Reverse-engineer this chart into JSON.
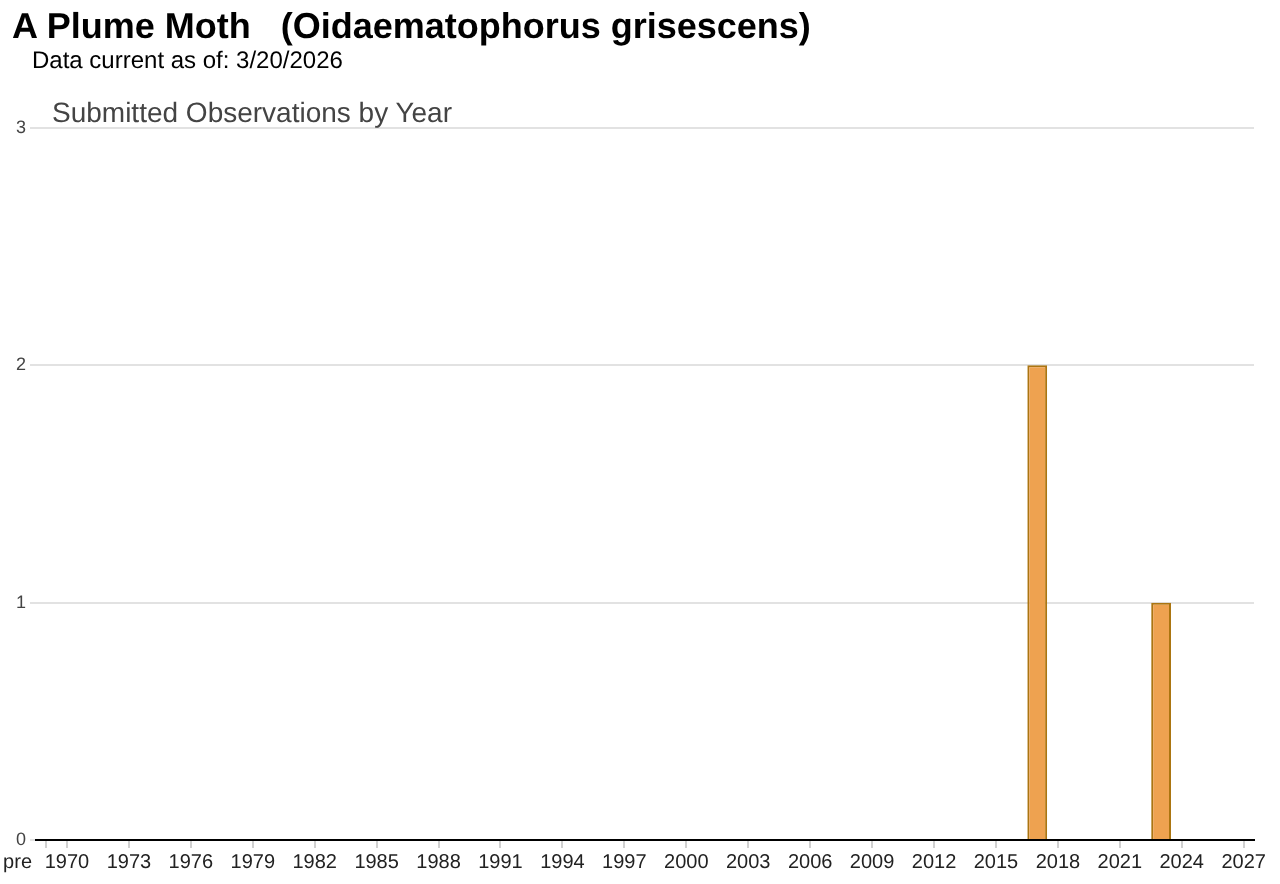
{
  "chart_data": {
    "type": "bar",
    "title": "A Plume Moth   (Oidaematophorus grisescens)",
    "subtitle": "Submitted Observations by Year",
    "annotations": [
      "Data current as of: 3/20/2026"
    ],
    "categories": [
      "pre",
      "1970",
      null,
      null,
      "1973",
      null,
      null,
      "1976",
      null,
      null,
      "1979",
      null,
      null,
      "1982",
      null,
      null,
      "1985",
      null,
      null,
      "1988",
      null,
      null,
      "1991",
      null,
      null,
      "1994",
      null,
      null,
      "1997",
      null,
      null,
      "2000",
      null,
      null,
      "2003",
      null,
      null,
      "2006",
      null,
      null,
      "2009",
      null,
      null,
      "2012",
      null,
      null,
      "2015",
      null,
      null,
      "2018",
      null,
      null,
      "2021",
      null,
      null,
      "2024",
      null,
      null,
      "2027"
    ],
    "values": [
      0,
      0,
      0,
      0,
      0,
      0,
      0,
      0,
      0,
      0,
      0,
      0,
      0,
      0,
      0,
      0,
      0,
      0,
      0,
      0,
      0,
      0,
      0,
      0,
      0,
      0,
      0,
      0,
      0,
      0,
      0,
      0,
      0,
      0,
      0,
      0,
      0,
      0,
      0,
      0,
      0,
      0,
      0,
      0,
      0,
      0,
      0,
      0,
      2,
      0,
      0,
      0,
      0,
      0,
      1,
      0,
      0,
      0,
      0
    ],
    "color": "#eea250",
    "ylim": [
      0,
      3
    ],
    "yticks": [
      0,
      1,
      2,
      3
    ],
    "grid": "y"
  }
}
